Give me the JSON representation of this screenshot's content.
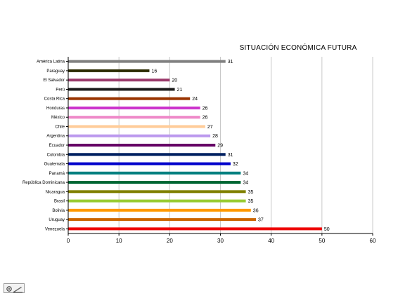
{
  "chart_data": {
    "type": "bar",
    "orientation": "horizontal",
    "title": "SITUACIÓN ECONÓMICA FUTURA",
    "categories": [
      "América Latina",
      "Paraguay",
      "El Salvador",
      "Perú",
      "Costa Rica",
      "Honduras",
      "México",
      "Chile",
      "Argentina",
      "Ecuador",
      "Colombia",
      "Guatemala",
      "Panamá",
      "República Dominicana",
      "Nicaragua",
      "Brasil",
      "Bolivia",
      "Uruguay",
      "Venezuela"
    ],
    "values": [
      31,
      16,
      20,
      21,
      24,
      26,
      26,
      27,
      28,
      29,
      31,
      32,
      34,
      34,
      35,
      35,
      36,
      37,
      50
    ],
    "colors": [
      "#808080",
      "#2a2a00",
      "#9b3a6b",
      "#1a1a1a",
      "#993300",
      "#cc33cc",
      "#ee88c8",
      "#ffcc99",
      "#bb99ee",
      "#660066",
      "#002060",
      "#0000cc",
      "#008080",
      "#006633",
      "#808000",
      "#99cc33",
      "#ff9900",
      "#cc6600",
      "#ee0000"
    ],
    "xlim": [
      0,
      60
    ],
    "xticks": [
      0,
      10,
      20,
      30,
      40,
      50,
      60
    ],
    "grid": true,
    "legend": "none"
  },
  "footer": {
    "icon": "edit-draw-icon"
  }
}
